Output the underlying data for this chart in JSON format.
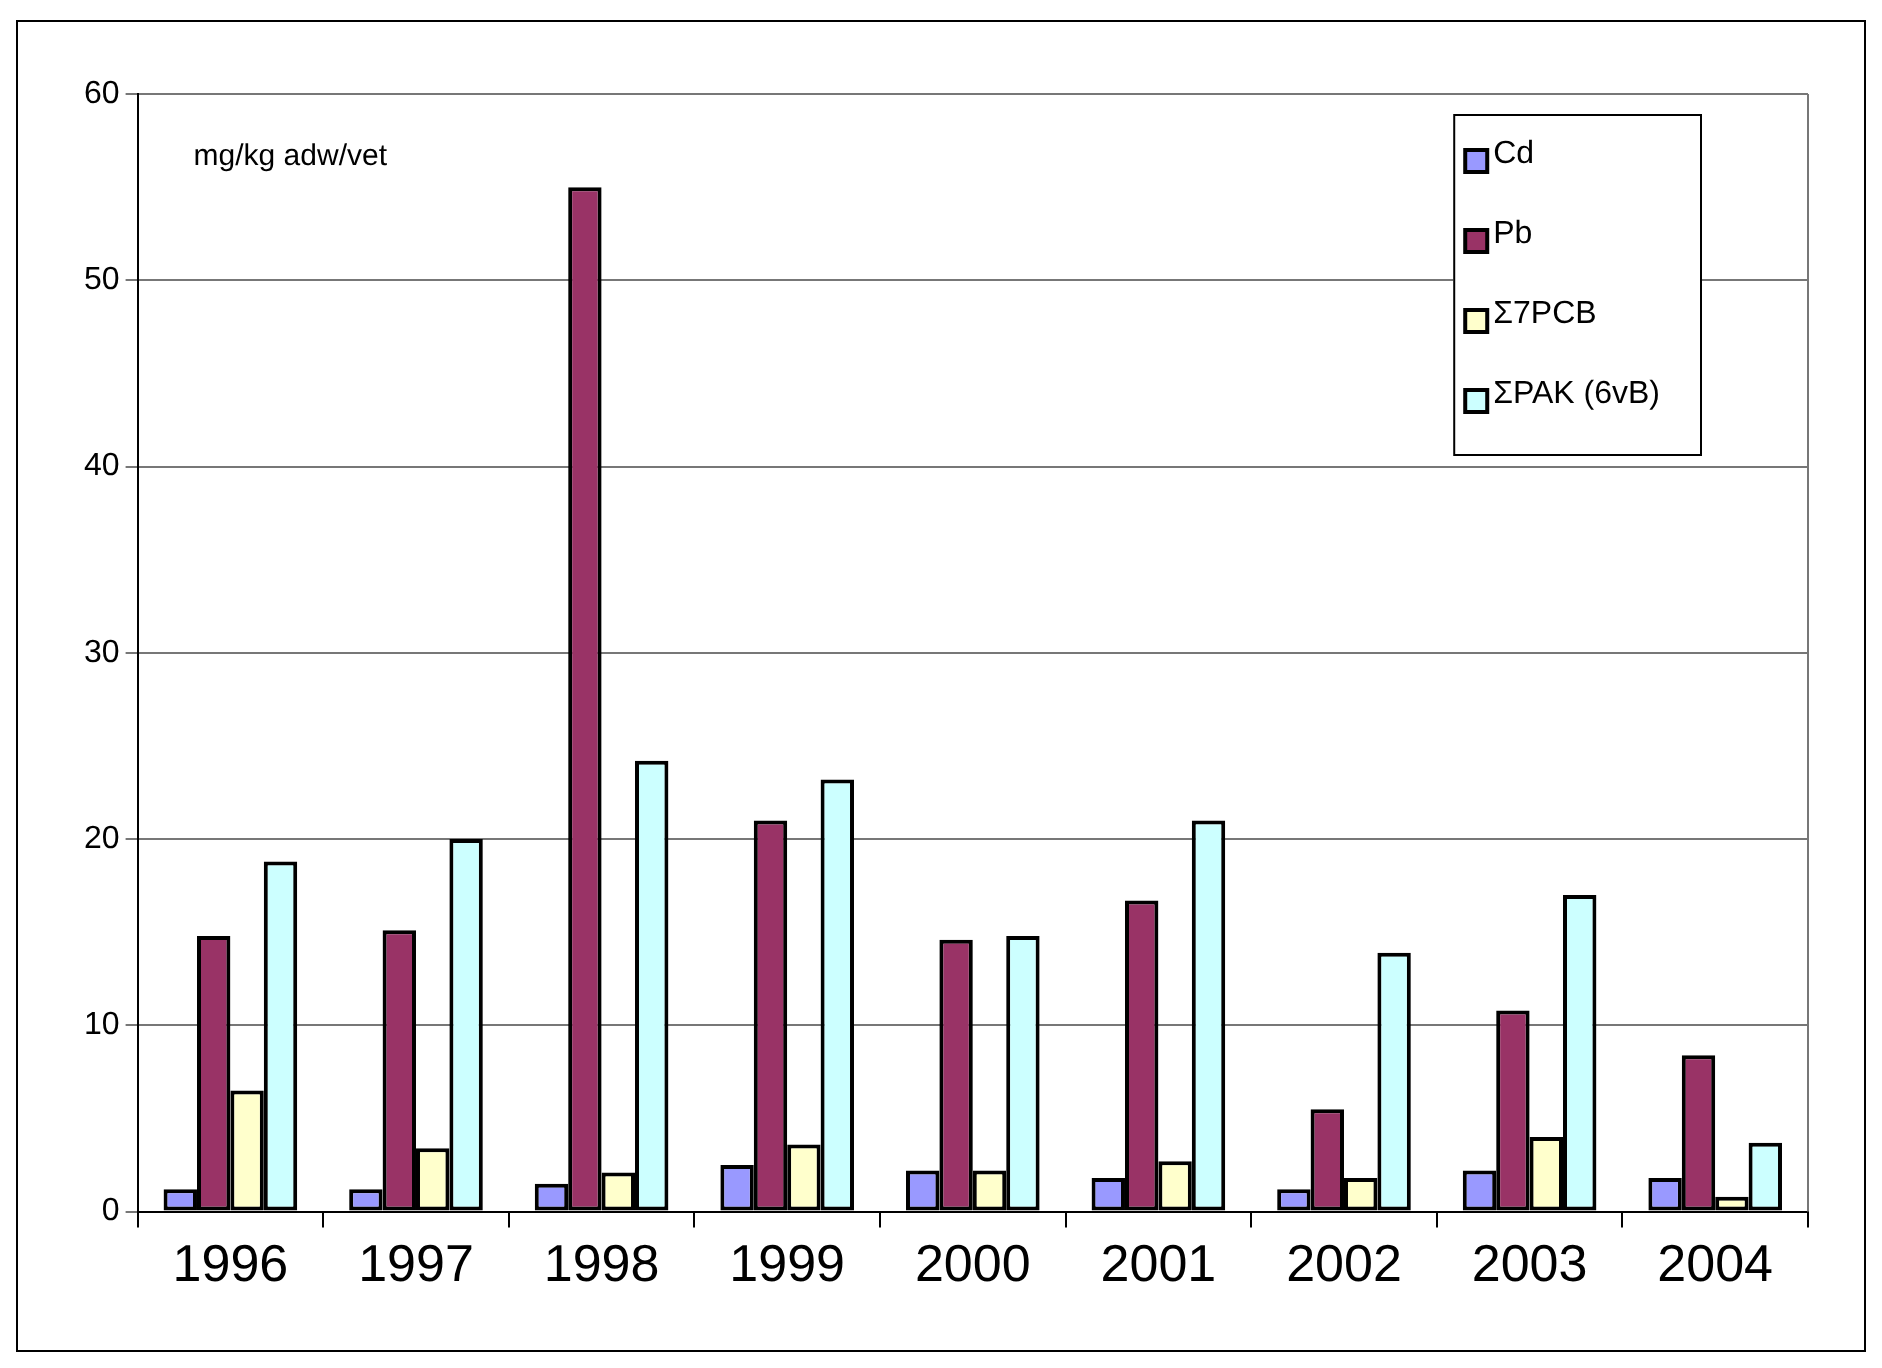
{
  "chart_data": {
    "type": "bar",
    "ylabel": "mg/kg adw/vet",
    "categories": [
      "1996",
      "1997",
      "1998",
      "1999",
      "2000",
      "2001",
      "2002",
      "2003",
      "2004"
    ],
    "series": [
      {
        "name": "Cd",
        "color": "#9999ff",
        "values": [
          1.2,
          1.2,
          1.5,
          2.5,
          2.2,
          1.8,
          1.2,
          2.2,
          1.8
        ]
      },
      {
        "name": "Pb",
        "color": "#993366",
        "values": [
          14.8,
          15.1,
          55,
          21,
          14.6,
          16.7,
          5.5,
          10.8,
          8.4
        ]
      },
      {
        "name": "Σ7PCB",
        "color": "#ffffcc",
        "values": [
          6.5,
          3.4,
          2.1,
          3.6,
          2.2,
          2.7,
          1.8,
          4.0,
          0.8
        ]
      },
      {
        "name": "ΣPAK (6vB)",
        "color": "#ccffff",
        "values": [
          18.8,
          20.0,
          24.2,
          23.2,
          14.8,
          21.0,
          13.9,
          17.0,
          3.7
        ]
      }
    ],
    "ylim": [
      0,
      60
    ],
    "yticks": [
      0,
      10,
      20,
      30,
      40,
      50,
      60
    ],
    "grid": "y",
    "legend": "top right"
  }
}
